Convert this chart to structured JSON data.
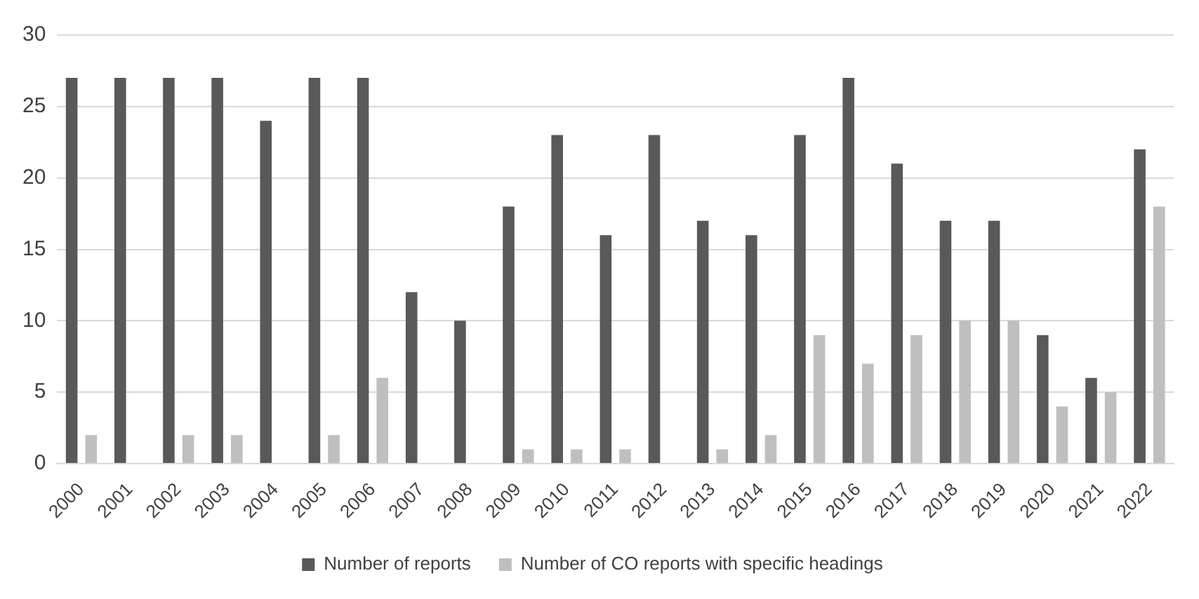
{
  "chart_data": {
    "type": "bar",
    "categories": [
      "2000",
      "2001",
      "2002",
      "2003",
      "2004",
      "2005",
      "2006",
      "2007",
      "2008",
      "2009",
      "2010",
      "2011",
      "2012",
      "2013",
      "2014",
      "2015",
      "2016",
      "2017",
      "2018",
      "2019",
      "2020",
      "2021",
      "2022"
    ],
    "series": [
      {
        "name": "Number of reports",
        "color": "#595959",
        "values": [
          27,
          27,
          27,
          27,
          24,
          27,
          27,
          12,
          10,
          18,
          23,
          16,
          23,
          17,
          16,
          23,
          27,
          21,
          17,
          17,
          9,
          6,
          22
        ]
      },
      {
        "name": "Number of CO reports with specific headings",
        "color": "#bfbfbf",
        "values": [
          2,
          0,
          2,
          2,
          0,
          2,
          6,
          0,
          0,
          1,
          1,
          1,
          0,
          1,
          2,
          9,
          7,
          9,
          10,
          10,
          4,
          5,
          18
        ]
      }
    ],
    "ylim": [
      0,
      30
    ],
    "yticks": [
      0,
      5,
      10,
      15,
      20,
      25,
      30
    ],
    "grid": "y",
    "legend": "bottom"
  }
}
